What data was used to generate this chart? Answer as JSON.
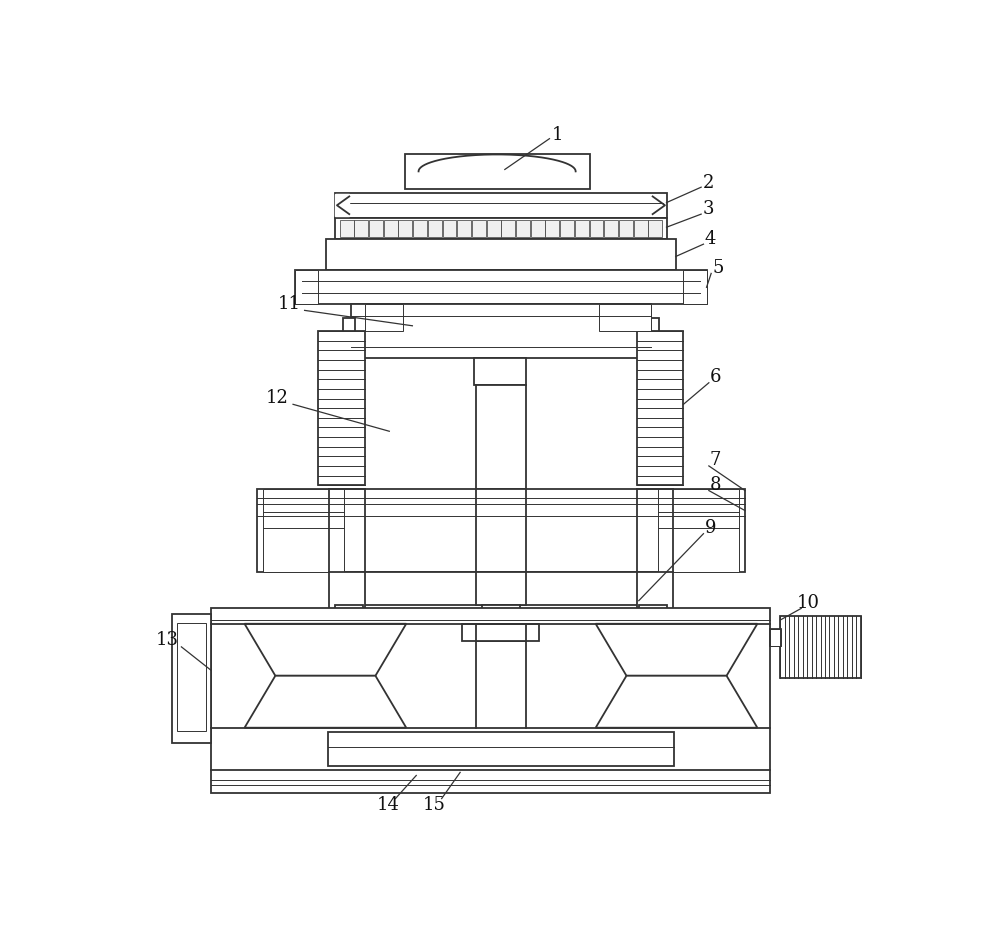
{
  "background": "#ffffff",
  "lc": "#333333",
  "lw": 1.3,
  "lw_thin": 0.7,
  "figsize": [
    10.0,
    9.31
  ],
  "dpi": 100
}
